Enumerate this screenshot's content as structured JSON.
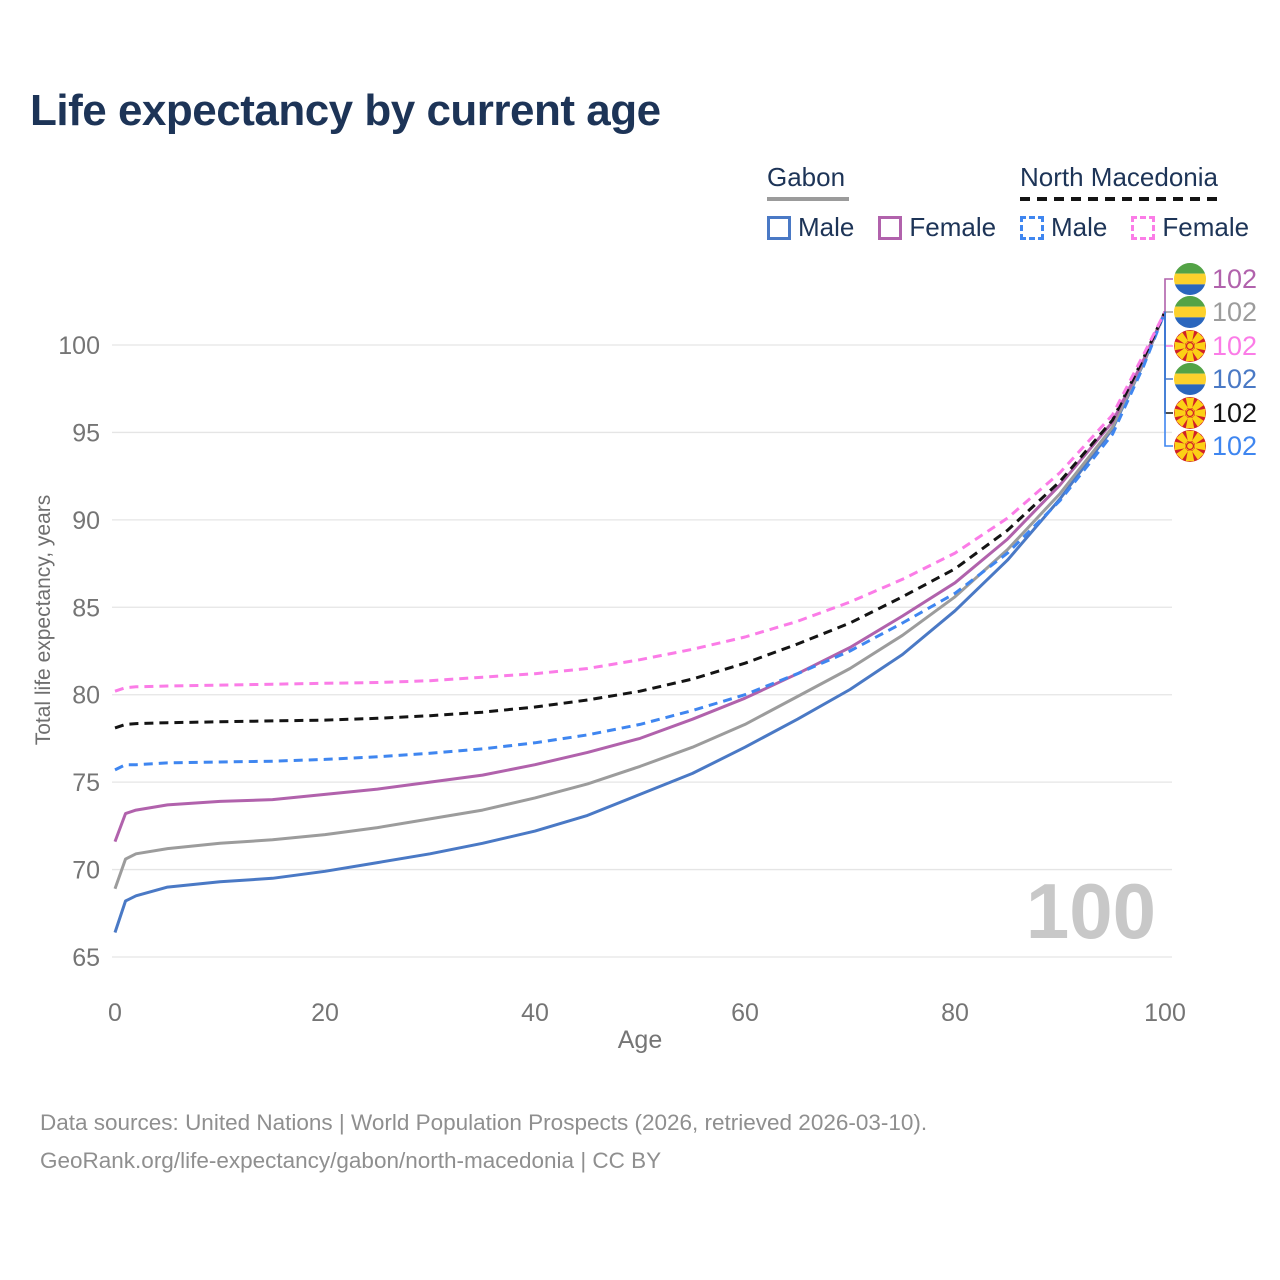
{
  "page": {
    "title": "Life expectancy by current age"
  },
  "legend": {
    "groups": [
      {
        "name": "Gabon",
        "line_style": "solid",
        "underline_color": "#9b9b9b",
        "items": [
          {
            "label": "Male",
            "color": "#4a79c5"
          },
          {
            "label": "Female",
            "color": "#b162ac"
          }
        ]
      },
      {
        "name": "North Macedonia",
        "line_style": "dashed",
        "underline_color": "#141414",
        "items": [
          {
            "label": "Male",
            "color": "#3f86f0"
          },
          {
            "label": "Female",
            "color": "#fb7ce7"
          }
        ]
      }
    ]
  },
  "chart_data": {
    "type": "line",
    "title": "Life expectancy by current age",
    "xlabel": "Age",
    "ylabel": "Total life expectancy, years",
    "xlim": [
      0,
      100
    ],
    "ylim": [
      65,
      103
    ],
    "x_ticks": [
      0,
      20,
      40,
      60,
      80,
      100
    ],
    "y_ticks": [
      65,
      70,
      75,
      80,
      85,
      90,
      95,
      100
    ],
    "grid": true,
    "legend_position": "top-right",
    "age_counter_watermark": "100",
    "x": [
      0,
      1,
      2,
      5,
      10,
      15,
      20,
      25,
      30,
      35,
      40,
      45,
      50,
      55,
      60,
      65,
      70,
      75,
      80,
      85,
      90,
      95,
      98,
      100
    ],
    "series": [
      {
        "name": "Gabon — Male",
        "country": "Gabon",
        "sex": "male",
        "line": "solid",
        "color": "#4a79c5",
        "values": [
          66.4,
          68.2,
          68.5,
          69.0,
          69.3,
          69.5,
          69.9,
          70.4,
          70.9,
          71.5,
          72.2,
          73.1,
          74.3,
          75.5,
          77.0,
          78.6,
          80.3,
          82.3,
          84.8,
          87.7,
          91.2,
          95.2,
          99.0,
          101.9
        ]
      },
      {
        "name": "Gabon — Total",
        "country": "Gabon",
        "sex": "total",
        "line": "solid",
        "color": "#9c9c9c",
        "values": [
          68.9,
          70.6,
          70.9,
          71.2,
          71.5,
          71.7,
          72.0,
          72.4,
          72.9,
          73.4,
          74.1,
          74.9,
          75.9,
          77.0,
          78.3,
          79.9,
          81.5,
          83.4,
          85.6,
          88.3,
          91.5,
          95.3,
          99.05,
          101.9
        ]
      },
      {
        "name": "Gabon — Female",
        "country": "Gabon",
        "sex": "female",
        "line": "solid",
        "color": "#b162ac",
        "values": [
          71.6,
          73.2,
          73.4,
          73.7,
          73.9,
          74.0,
          74.3,
          74.6,
          75.0,
          75.4,
          76.0,
          76.7,
          77.5,
          78.6,
          79.8,
          81.2,
          82.7,
          84.5,
          86.4,
          88.9,
          92.0,
          95.6,
          99.2,
          101.9
        ]
      },
      {
        "name": "North Macedonia — Male",
        "country": "North Macedonia",
        "sex": "male",
        "line": "dashed",
        "color": "#3f86f0",
        "values": [
          75.7,
          76.0,
          76.0,
          76.1,
          76.15,
          76.2,
          76.3,
          76.45,
          76.65,
          76.9,
          77.25,
          77.7,
          78.3,
          79.1,
          80.0,
          81.2,
          82.5,
          84.1,
          85.8,
          88.1,
          91.1,
          94.9,
          98.85,
          101.9
        ]
      },
      {
        "name": "North Macedonia — Total",
        "country": "North Macedonia",
        "sex": "total",
        "line": "dashed",
        "color": "#141414",
        "values": [
          78.1,
          78.3,
          78.35,
          78.4,
          78.45,
          78.5,
          78.55,
          78.65,
          78.8,
          79.0,
          79.3,
          79.7,
          80.2,
          80.9,
          81.8,
          82.9,
          84.1,
          85.6,
          87.2,
          89.4,
          92.2,
          95.7,
          99.3,
          101.9
        ]
      },
      {
        "name": "North Macedonia — Female",
        "country": "North Macedonia",
        "sex": "female",
        "line": "dashed",
        "color": "#fb7ce7",
        "values": [
          80.2,
          80.4,
          80.45,
          80.5,
          80.55,
          80.6,
          80.65,
          80.7,
          80.8,
          81.0,
          81.2,
          81.5,
          82.0,
          82.6,
          83.3,
          84.2,
          85.3,
          86.6,
          88.1,
          90.1,
          92.7,
          96.0,
          99.5,
          101.9
        ]
      }
    ]
  },
  "endpoints": {
    "rows": [
      {
        "flag": "gabon",
        "value": "102",
        "color": "#b162ac"
      },
      {
        "flag": "gabon",
        "value": "102",
        "color": "#9c9c9c"
      },
      {
        "flag": "north-macedonia",
        "value": "102",
        "color": "#fb7ce7"
      },
      {
        "flag": "gabon",
        "value": "102",
        "color": "#4a79c5"
      },
      {
        "flag": "north-macedonia",
        "value": "102",
        "color": "#141414"
      },
      {
        "flag": "north-macedonia",
        "value": "102",
        "color": "#3f86f0"
      }
    ]
  },
  "flag_colors": {
    "gabon_green": "#53a346",
    "gabon_yellow": "#fcd12c",
    "gabon_blue": "#2a66bd",
    "nm_red": "#d12127",
    "nm_yellow": "#fcd016"
  },
  "footer": {
    "lines": [
      "Data sources: United Nations | World Population Prospects (2026, retrieved 2026-03-10).",
      "GeoRank.org/life-expectancy/gabon/north-macedonia | CC BY"
    ]
  }
}
